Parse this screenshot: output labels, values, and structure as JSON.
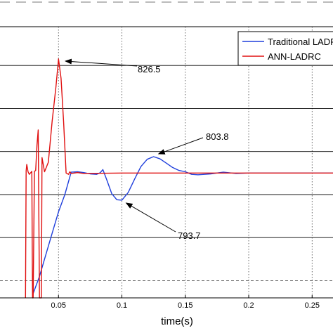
{
  "chart_data": {
    "type": "line",
    "title": "",
    "xlabel": "time(s)",
    "ylabel": "",
    "xlim": [
      0.0,
      0.3
    ],
    "ylim": [
      771,
      834
    ],
    "grid": true,
    "legend": "top-right",
    "x_ticks": [
      {
        "value": 0.05,
        "label": "0.05"
      },
      {
        "value": 0.1,
        "label": "0.1"
      },
      {
        "value": 0.15,
        "label": "0.15"
      },
      {
        "value": 0.2,
        "label": "0.2"
      },
      {
        "value": 0.25,
        "label": "0.25"
      }
    ],
    "y_grid": [
      775,
      785,
      795,
      805,
      815,
      825
    ],
    "series": [
      {
        "name": "Traditional LADRC",
        "color": "#1f3fdc",
        "x": [
          0.03,
          0.035,
          0.04,
          0.045,
          0.05,
          0.055,
          0.06,
          0.065,
          0.07,
          0.075,
          0.08,
          0.083,
          0.085,
          0.088,
          0.092,
          0.096,
          0.1,
          0.105,
          0.11,
          0.115,
          0.12,
          0.125,
          0.13,
          0.135,
          0.14,
          0.145,
          0.15,
          0.155,
          0.16,
          0.17,
          0.18,
          0.19,
          0.2,
          0.22,
          0.25,
          0.3
        ],
        "values": [
          772,
          776,
          781,
          786,
          791,
          795,
          800.2,
          800.3,
          800.1,
          799.8,
          799.7,
          800.1,
          800.8,
          798.5,
          795.2,
          793.8,
          793.7,
          795.5,
          798.6,
          801.5,
          803.2,
          803.8,
          803.3,
          802.3,
          801.3,
          800.6,
          800.3,
          799.7,
          799.6,
          799.8,
          800.2,
          799.9,
          800.0,
          800.0,
          800.0,
          800.0
        ]
      },
      {
        "name": "ANN-LADRC",
        "color": "#e01010",
        "x": [
          0.024,
          0.0245,
          0.025,
          0.026,
          0.027,
          0.029,
          0.0295,
          0.03,
          0.031,
          0.032,
          0.033,
          0.034,
          0.0345,
          0.035,
          0.0365,
          0.037,
          0.039,
          0.042,
          0.045,
          0.048,
          0.05,
          0.052,
          0.054,
          0.056,
          0.058,
          0.0585,
          0.059,
          0.06,
          0.065,
          0.07,
          0.1,
          0.15,
          0.2,
          0.25,
          0.3
        ],
        "values": [
          771,
          800.5,
          802,
          800.3,
          799.7,
          800.4,
          771,
          771,
          800.4,
          800.6,
          806.5,
          810,
          790,
          771,
          771,
          803.6,
          800.3,
          802.5,
          812,
          820,
          826.5,
          822,
          812,
          800,
          799.7,
          800.1,
          800.3,
          799.9,
          800.1,
          799.9,
          800.0,
          800.0,
          800.0,
          800.0,
          800.0
        ]
      }
    ],
    "annotations": [
      {
        "text": "826.5",
        "x": 0.0515,
        "y": 826.5
      },
      {
        "text": "803.8",
        "x": 0.125,
        "y": 803.8
      },
      {
        "text": "793.7",
        "x": 0.1,
        "y": 793.7
      }
    ]
  },
  "colors": {
    "grid_dotted": "#444444",
    "axes": "#000000"
  }
}
